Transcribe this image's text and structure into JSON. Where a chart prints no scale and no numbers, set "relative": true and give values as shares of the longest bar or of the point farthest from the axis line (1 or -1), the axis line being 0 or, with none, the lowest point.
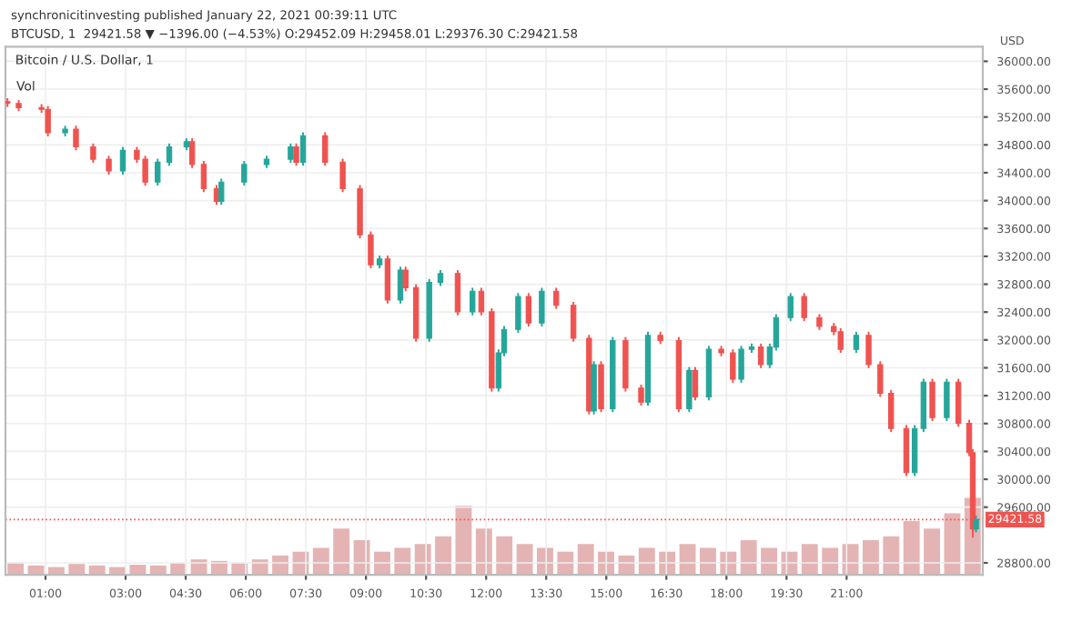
{
  "chart_data": [
    {
      "type": "candlestick",
      "title": "Bitcoin / U.S. Dollar, 1",
      "subtitle": "BTCUSD, 1  29421.58 ▼ −1396.00 (−4.53%) O:29452.09 H:29458.01 L:29376.30 C:29421.58",
      "annotations": [
        "synchronicitinvesting published January 22, 2021 00:39:11 UTC"
      ],
      "ylabel": "USD",
      "colors": [
        "#ef5350",
        "#ef5350",
        "#ef5350",
        "#ef5350",
        "#26a69a",
        "#ef5350",
        "#ef5350",
        "#ef5350",
        "#26a69a",
        "#ef5350",
        "#ef5350",
        "#26a69a",
        "#26a69a",
        "#26a69a",
        "#ef5350",
        "#ef5350",
        "#ef5350",
        "#26a69a",
        "#26a69a",
        "#26a69a",
        "#26a69a",
        "#ef5350",
        "#26a69a",
        "#ef5350",
        "#ef5350",
        "#ef5350",
        "#ef5350",
        "#26a69a",
        "#ef5350",
        "#26a69a",
        "#ef5350",
        "#ef5350",
        "#26a69a",
        "#26a69a",
        "#ef5350",
        "#26a69a",
        "#ef5350",
        "#ef5350",
        "#26a69a",
        "#26a69a",
        "#26a69a",
        "#ef5350",
        "#26a69a",
        "#ef5350",
        "#ef5350",
        "#ef5350",
        "#26a69a",
        "#ef5350",
        "#26a69a",
        "#ef5350",
        "#ef5350",
        "#26a69a",
        "#ef5350",
        "#ef5350",
        "#26a69a",
        "#ef5350",
        "#26a69a",
        "#ef5350",
        "#ef5350",
        "#26a69a",
        "#26a69a",
        "#ef5350",
        "#26a69a",
        "#26a69a",
        "#26a69a",
        "#ef5350",
        "#ef5350",
        "#ef5350",
        "#ef5350",
        "#26a69a",
        "#ef5350",
        "#ef5350",
        "#ef5350",
        "#ef5350",
        "#26a69a",
        "#26a69a",
        "#ef5350",
        "#26a69a",
        "#ef5350",
        "#ef5350",
        "#ef5350",
        "#26a69a"
      ],
      "grid": true,
      "legend": false,
      "x": [
        0.05,
        0.33,
        0.9,
        1.06,
        1.49,
        1.76,
        2.19,
        2.58,
        2.93,
        3.28,
        3.49,
        3.8,
        4.09,
        4.52,
        4.66,
        4.95,
        5.27,
        5.39,
        5.96,
        6.52,
        7.12,
        7.26,
        7.43,
        7.98,
        8.42,
        8.85,
        9.12,
        9.34,
        9.54,
        9.86,
        9.99,
        10.25,
        10.58,
        10.86,
        11.29,
        11.66,
        11.88,
        12.14,
        12.31,
        12.45,
        12.8,
        13.06,
        13.39,
        13.75,
        14.18,
        14.57,
        14.69,
        14.87,
        15.16,
        15.48,
        15.87,
        16.04,
        16.35,
        16.81,
        17.07,
        17.22,
        17.56,
        17.87,
        18.16,
        18.37,
        18.63,
        18.86,
        19.08,
        19.24,
        19.6,
        19.94,
        20.32,
        20.68,
        20.85,
        21.24,
        21.55,
        21.84,
        22.11,
        22.49,
        22.7,
        22.92,
        23.14,
        23.5,
        23.79,
        24.06,
        24.15,
        24.23
      ],
      "ohlc": [
        [
          35420,
          35470,
          35345,
          35395
        ],
        [
          35395,
          35445,
          35285,
          35335
        ],
        [
          35335,
          35385,
          35260,
          35310
        ],
        [
          35310,
          35360,
          34923,
          34973
        ],
        [
          34973,
          35074,
          34923,
          35024
        ],
        [
          35024,
          35074,
          34721,
          34771
        ],
        [
          34771,
          34821,
          34544,
          34594
        ],
        [
          34594,
          34644,
          34375,
          34425
        ],
        [
          34425,
          34771,
          34375,
          34721
        ],
        [
          34721,
          34771,
          34544,
          34594
        ],
        [
          34594,
          34644,
          34216,
          34266
        ],
        [
          34266,
          34601,
          34216,
          34551
        ],
        [
          34551,
          34821,
          34501,
          34771
        ],
        [
          34771,
          34897,
          34721,
          34847
        ],
        [
          34847,
          34897,
          34469,
          34519
        ],
        [
          34519,
          34569,
          34122,
          34172
        ],
        [
          34172,
          34222,
          33938,
          33988
        ],
        [
          33988,
          34316,
          33938,
          34266
        ],
        [
          34266,
          34569,
          34216,
          34519
        ],
        [
          34519,
          34644,
          34469,
          34594
        ],
        [
          34594,
          34821,
          34544,
          34771
        ],
        [
          34771,
          34821,
          34501,
          34551
        ],
        [
          34551,
          34980,
          34501,
          34930
        ],
        [
          34930,
          34980,
          34501,
          34551
        ],
        [
          34551,
          34601,
          34122,
          34172
        ],
        [
          34172,
          34222,
          33458,
          33508
        ],
        [
          33508,
          33558,
          33028,
          33078
        ],
        [
          33078,
          33212,
          33028,
          33162
        ],
        [
          33162,
          33212,
          32523,
          32573
        ],
        [
          32573,
          33052,
          32523,
          33002
        ],
        [
          33002,
          33052,
          32700,
          32750
        ],
        [
          32750,
          32800,
          31974,
          32024
        ],
        [
          32024,
          32875,
          31974,
          32825
        ],
        [
          32825,
          33002,
          32775,
          32952
        ],
        [
          32952,
          33002,
          32354,
          32404
        ],
        [
          32404,
          32749,
          32354,
          32699
        ],
        [
          32699,
          32749,
          32354,
          32404
        ],
        [
          32404,
          32454,
          31259,
          31309
        ],
        [
          31309,
          31865,
          31259,
          31815
        ],
        [
          31815,
          32201,
          31765,
          32151
        ],
        [
          32151,
          32673,
          32101,
          32623
        ],
        [
          32623,
          32673,
          32194,
          32244
        ],
        [
          32244,
          32749,
          32194,
          32699
        ],
        [
          32699,
          32749,
          32447,
          32497
        ],
        [
          32497,
          32547,
          31974,
          32024
        ],
        [
          32024,
          32074,
          30931,
          30981
        ],
        [
          30981,
          31695,
          30931,
          31645
        ],
        [
          31645,
          31695,
          30964,
          31014
        ],
        [
          31014,
          32042,
          30964,
          31992
        ],
        [
          31992,
          32042,
          31259,
          31309
        ],
        [
          31309,
          31359,
          31057,
          31107
        ],
        [
          31107,
          32117,
          31057,
          32067
        ],
        [
          32067,
          32117,
          31942,
          31992
        ],
        [
          31992,
          32042,
          30964,
          31014
        ],
        [
          31014,
          31612,
          30964,
          31562
        ],
        [
          31562,
          31612,
          31133,
          31183
        ],
        [
          31183,
          31915,
          31133,
          31865
        ],
        [
          31865,
          31915,
          31765,
          31815
        ],
        [
          31815,
          31865,
          31386,
          31436
        ],
        [
          31436,
          31915,
          31386,
          31865
        ],
        [
          31865,
          31948,
          31815,
          31898
        ],
        [
          31898,
          31948,
          31595,
          31645
        ],
        [
          31645,
          31948,
          31595,
          31898
        ],
        [
          31898,
          32370,
          31848,
          32320
        ],
        [
          32320,
          32673,
          32270,
          32623
        ],
        [
          32623,
          32673,
          32270,
          32320
        ],
        [
          32320,
          32370,
          32144,
          32194
        ],
        [
          32194,
          32244,
          32068,
          32118
        ],
        [
          32118,
          32168,
          31815,
          31865
        ],
        [
          31865,
          32117,
          31815,
          32067
        ],
        [
          32067,
          32117,
          31595,
          31645
        ],
        [
          31645,
          31695,
          31184,
          31234
        ],
        [
          31234,
          31284,
          30678,
          30728
        ],
        [
          30728,
          30778,
          30046,
          30096
        ],
        [
          30096,
          30778,
          30046,
          30728
        ],
        [
          30728,
          31443,
          30678,
          31393
        ],
        [
          31393,
          31443,
          30837,
          30887
        ],
        [
          30887,
          31443,
          30837,
          31393
        ],
        [
          31393,
          31443,
          30754,
          30804
        ],
        [
          30804,
          30854,
          30332,
          30382
        ],
        [
          30382,
          30432,
          29161,
          29288
        ],
        [
          29288,
          29480,
          29238,
          29421.58
        ]
      ],
      "xlim": [
        0,
        24.4
      ],
      "ylim": [
        28630,
        36210
      ],
      "xticks": [
        {
          "value": 1,
          "label": "01:00"
        },
        {
          "value": 3,
          "label": "03:00"
        },
        {
          "value": 4.5,
          "label": "04:30"
        },
        {
          "value": 6,
          "label": "06:00"
        },
        {
          "value": 7.5,
          "label": "07:30"
        },
        {
          "value": 9,
          "label": "09:00"
        },
        {
          "value": 10.5,
          "label": "10:30"
        },
        {
          "value": 12,
          "label": "12:00"
        },
        {
          "value": 13.5,
          "label": "13:30"
        },
        {
          "value": 15,
          "label": "15:00"
        },
        {
          "value": 16.5,
          "label": "16:30"
        },
        {
          "value": 18,
          "label": "18:00"
        },
        {
          "value": 19.5,
          "label": "19:30"
        },
        {
          "value": 21,
          "label": "21:00"
        }
      ],
      "yticks": [
        {
          "value": 28800,
          "label": "28800.00"
        },
        {
          "value": 29600,
          "label": "29600.00"
        },
        {
          "value": 30000,
          "label": "30000.00"
        },
        {
          "value": 30400,
          "label": "30400.00"
        },
        {
          "value": 30800,
          "label": "30800.00"
        },
        {
          "value": 31200,
          "label": "31200.00"
        },
        {
          "value": 31600,
          "label": "31600.00"
        },
        {
          "value": 32000,
          "label": "32000.00"
        },
        {
          "value": 32400,
          "label": "32400.00"
        },
        {
          "value": 32800,
          "label": "32800.00"
        },
        {
          "value": 33200,
          "label": "33200.00"
        },
        {
          "value": 33600,
          "label": "33600.00"
        },
        {
          "value": 34000,
          "label": "34000.00"
        },
        {
          "value": 34400,
          "label": "34400.00"
        },
        {
          "value": 34800,
          "label": "34800.00"
        },
        {
          "value": 35200,
          "label": "35200.00"
        },
        {
          "value": 35600,
          "label": "35600.00"
        },
        {
          "value": 36000,
          "label": "36000.00"
        }
      ],
      "ref_lines": [
        {
          "axis": "y",
          "value": 29421.58,
          "label": "29421.58",
          "color": "#ef5350",
          "line_style": "dotted"
        }
      ]
    },
    {
      "type": "bar",
      "title": "Vol",
      "relative": true,
      "color": "#e4b4b4",
      "categories": [
        null,
        null,
        null,
        null,
        null,
        null,
        null,
        null,
        null,
        null,
        null,
        null,
        null,
        null,
        null,
        null,
        null,
        null,
        null,
        null,
        null,
        null,
        null,
        null,
        null,
        null,
        null,
        null,
        null,
        null,
        null,
        null,
        null,
        null,
        null,
        null,
        null,
        null,
        null,
        null,
        null,
        null,
        null,
        null,
        null,
        null,
        null,
        null
      ],
      "values": [
        0.15,
        0.12,
        0.1,
        0.14,
        0.12,
        0.1,
        0.13,
        0.12,
        0.15,
        0.2,
        0.18,
        0.15,
        0.2,
        0.25,
        0.3,
        0.35,
        0.6,
        0.45,
        0.3,
        0.35,
        0.4,
        0.5,
        0.9,
        0.6,
        0.5,
        0.4,
        0.35,
        0.3,
        0.4,
        0.3,
        0.25,
        0.35,
        0.3,
        0.4,
        0.35,
        0.3,
        0.45,
        0.35,
        0.3,
        0.4,
        0.35,
        0.4,
        0.45,
        0.5,
        0.7,
        0.6,
        0.8,
        1.0
      ]
    }
  ]
}
